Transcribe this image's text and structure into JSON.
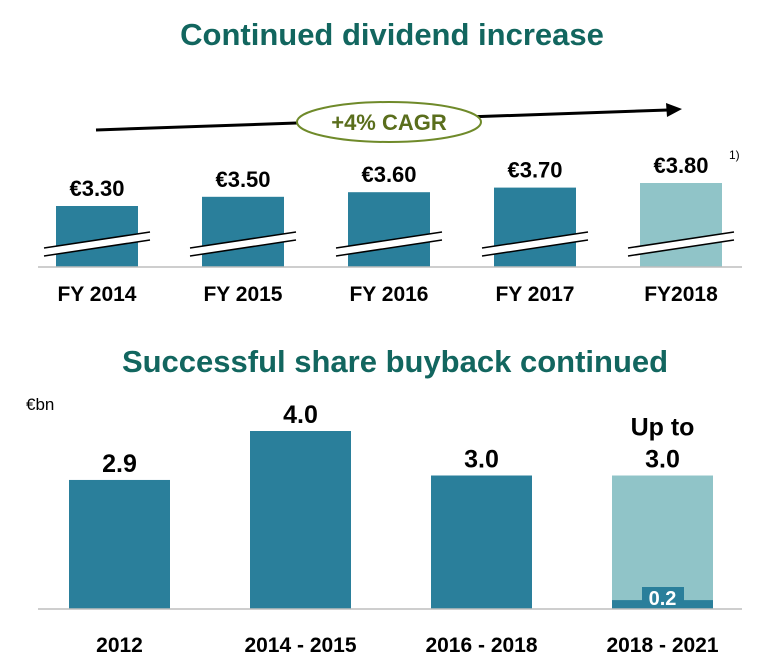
{
  "colors": {
    "title": "#12665f",
    "bar": "#2a7f9b",
    "bar_light": "#90c4c8",
    "cagr_text": "#5a6e1c",
    "cagr_border": "#6f8a2a"
  },
  "chart_data": [
    {
      "type": "bar",
      "title": "Continued dividend increase",
      "annotation": "+4% CAGR",
      "categories": [
        "FY 2014",
        "FY 2015",
        "FY 2016",
        "FY 2017",
        "FY2018"
      ],
      "values": [
        3.3,
        3.5,
        3.6,
        3.7,
        3.8
      ],
      "labels": [
        "€3.30",
        "€3.50",
        "€3.60",
        "€3.70",
        "€3.80"
      ],
      "footnote_marker": "1)",
      "highlighted": [
        "FY2018"
      ],
      "axis_break": true
    },
    {
      "type": "bar",
      "title": "Successful share buyback continued",
      "unit": "€bn",
      "categories": [
        "2012",
        "2014 - 2015",
        "2016 - 2018",
        "2018 - 2021"
      ],
      "values": [
        2.9,
        4.0,
        3.0,
        3.0
      ],
      "labels": [
        "2.9",
        "4.0",
        "3.0",
        "3.0"
      ],
      "last_bar_prefix": "Up to",
      "last_bar_executed": 0.2,
      "last_bar_executed_label": "0.2",
      "ylim": [
        0,
        4.0
      ]
    }
  ]
}
